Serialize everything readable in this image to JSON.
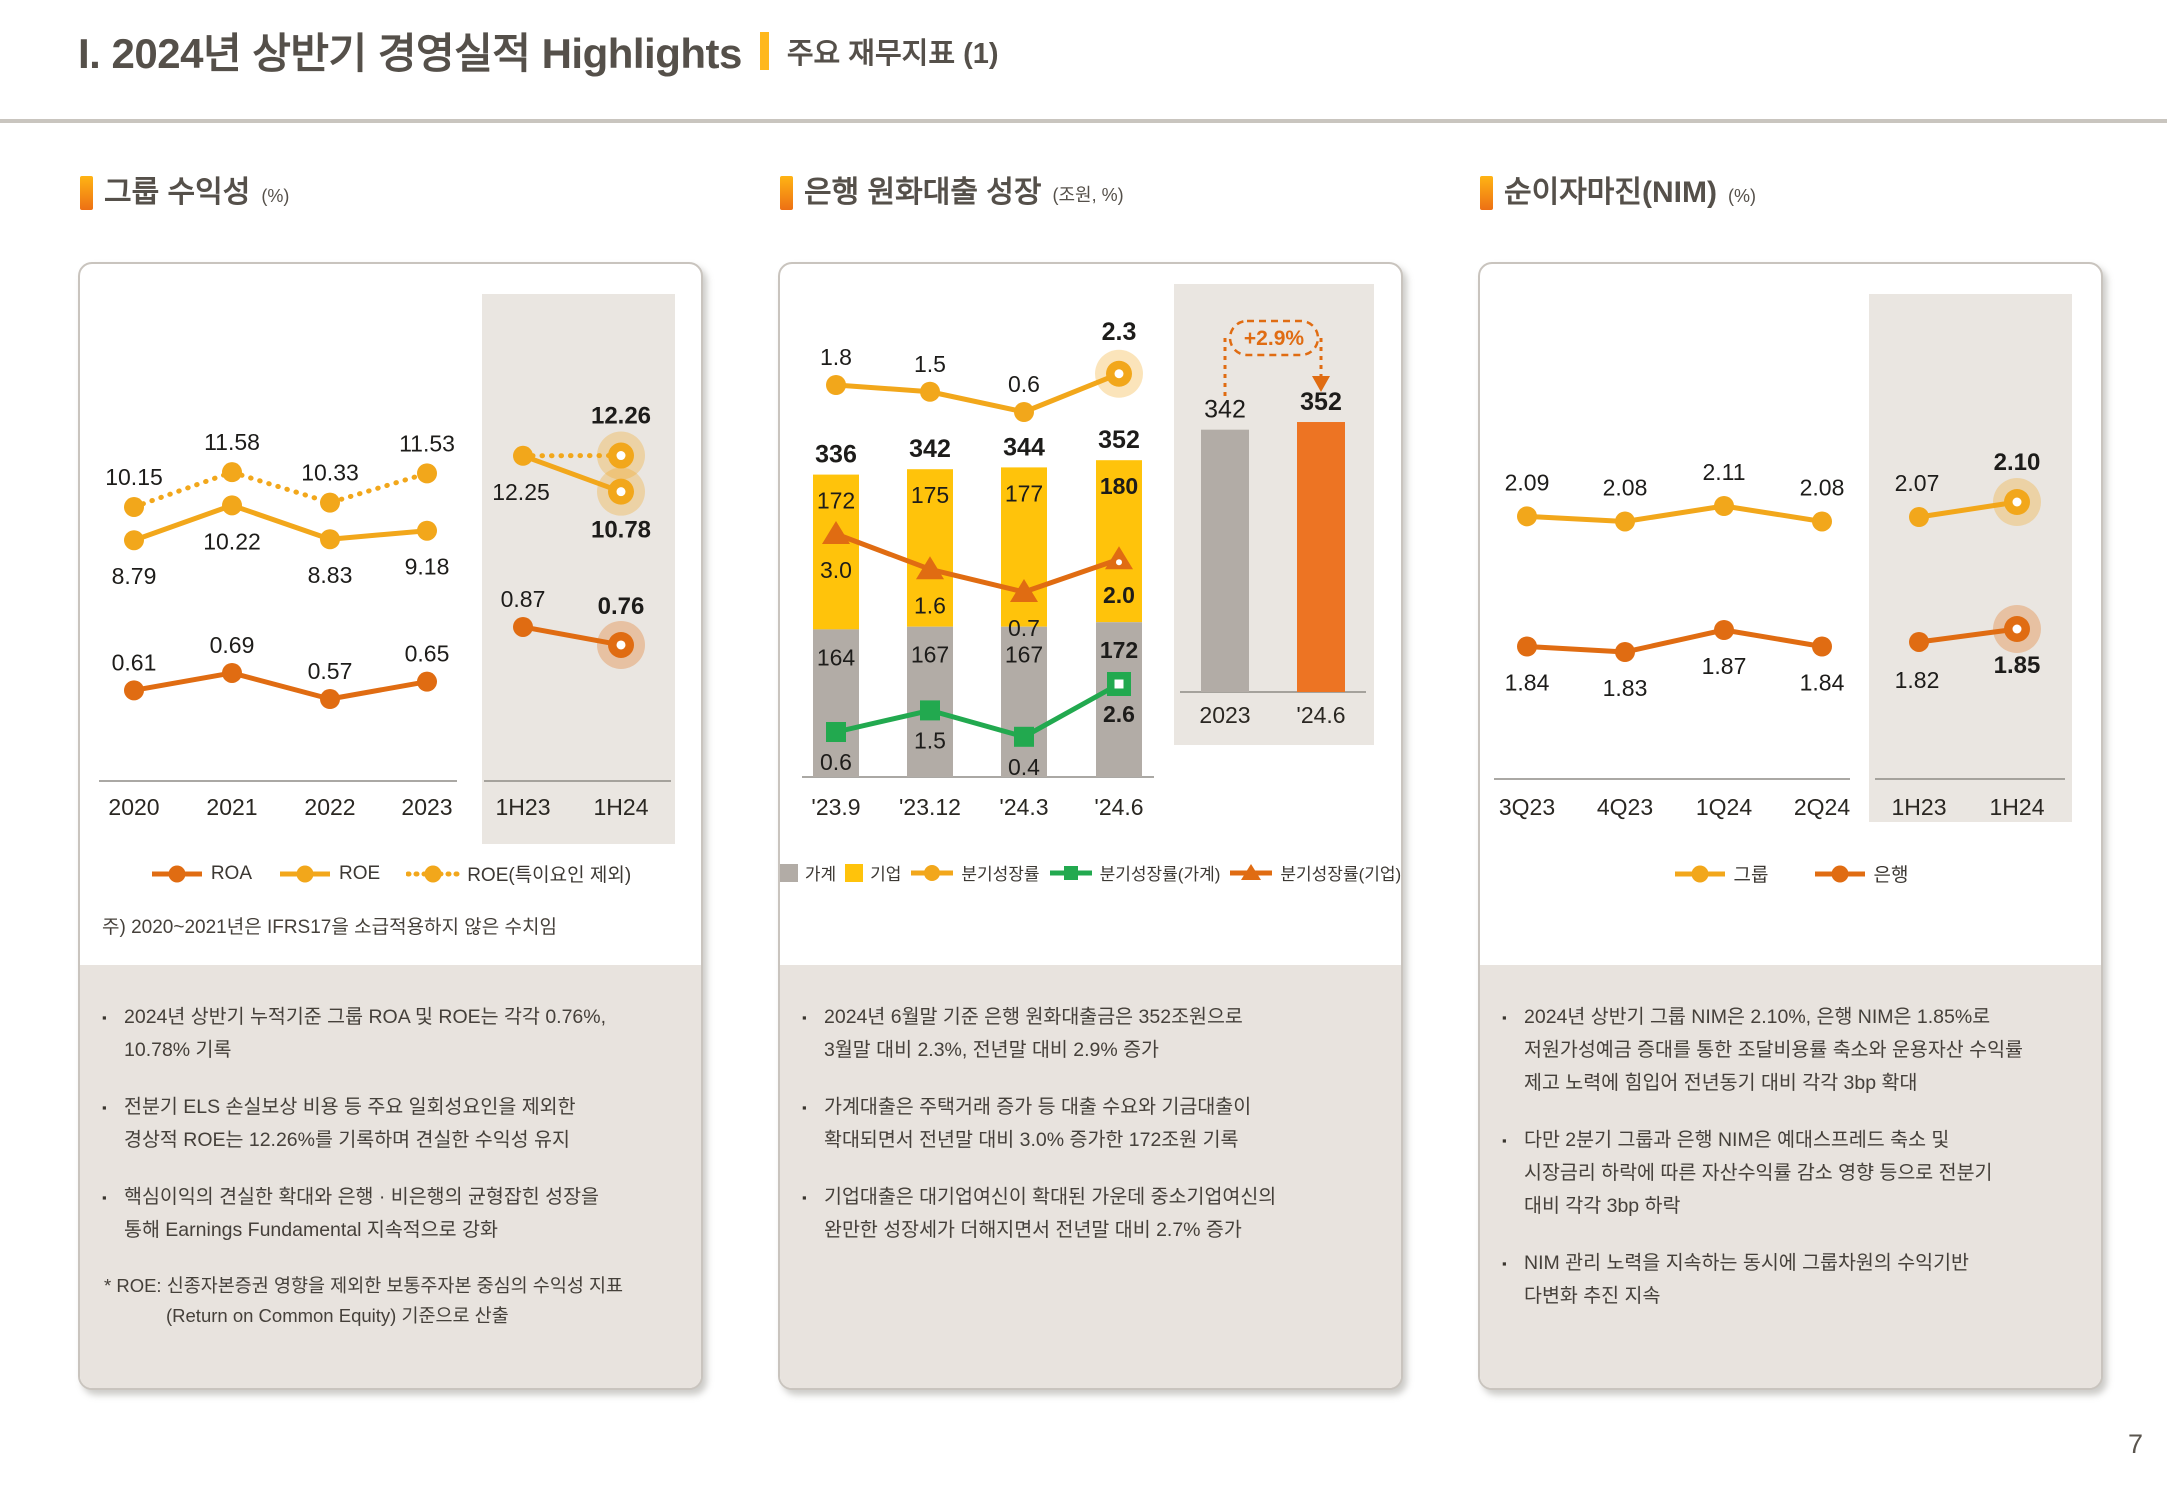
{
  "header": {
    "title": "I. 2024년 상반기 경영실적 Highlights",
    "subtitle": "주요 재무지표 (1)"
  },
  "colors": {
    "accent_yellow": "#F2A71B",
    "accent_orange": "#E06C12",
    "bar_orange": "#ED7423",
    "bar_yellow": "#FFC30B",
    "bar_gray": "#B2ACA6",
    "green": "#22A94F",
    "title_text": "#55504A",
    "panel_beige": "#E8E3DE",
    "chart_shade": "#EAE6E1"
  },
  "panels": {
    "p1": {
      "title": "그룹 수익성",
      "unit": "(%)",
      "chart_note": "주) 2020~2021년은 IFRS17을 소급적용하지 않은 수치임",
      "bullets": [
        "2024년 상반기 누적기준 그룹 ROA 및 ROE는 각각 0.76%,\n10.78% 기록",
        "전분기 ELS 손실보상 비용 등 주요 일회성요인을 제외한\n경상적 ROE는 12.26%를 기록하며 견실한 수익성 유지",
        "핵심이익의 견실한 확대와 은행 · 비은행의 균형잡힌 성장을\n통해 Earnings Fundamental 지속적으로 강화"
      ],
      "footnote_line1": "* ROE: 신종자본증권 영향을 제외한 보통주자본 중심의 수익성 지표",
      "footnote_line2": "(Return on Common Equity) 기준으로 산출"
    },
    "p2": {
      "title": "은행 원화대출 성장",
      "unit": "(조원, %)",
      "bullets": [
        "2024년 6월말 기준 은행 원화대출금은 352조원으로\n3월말 대비 2.3%, 전년말 대비 2.9% 증가",
        "가계대출은 주택거래 증가 등 대출 수요와 기금대출이\n확대되면서 전년말 대비 3.0% 증가한 172조원 기록",
        "기업대출은 대기업여신이 확대된 가운데 중소기업여신의\n완만한 성장세가 더해지면서 전년말 대비 2.7% 증가"
      ]
    },
    "p3": {
      "title": "순이자마진(NIM)",
      "unit": "(%)",
      "bullets": [
        "2024년 상반기 그룹 NIM은 2.10%, 은행 NIM은 1.85%로\n저원가성예금 증대를 통한 조달비용률 축소와 운용자산 수익률\n제고 노력에 힘입어 전년동기 대비 각각 3bp 확대",
        "다만 2분기 그룹과 은행 NIM은 예대스프레드 축소 및\n시장금리 하락에 따른 자산수익률 감소 영향 등으로 전분기\n대비 각각 3bp 하락",
        "NIM 관리 노력을 지속하는 동시에 그룹차원의 수익기반\n다변화 추진 지속"
      ]
    }
  },
  "chart_data": [
    {
      "type": "line",
      "title": "그룹 수익성",
      "ylabel": "%",
      "categories": [
        "2020",
        "2021",
        "2022",
        "2023"
      ],
      "right_categories": [
        "1H23",
        "1H24"
      ],
      "series": [
        {
          "name": "ROE(특이요인 제외)",
          "style": "dotted",
          "color": "yellow",
          "values": [
            "10.15",
            "11.58",
            "10.33",
            "11.53"
          ],
          "right_values": [
            "12.25",
            "12.26"
          ]
        },
        {
          "name": "ROE",
          "style": "solid",
          "color": "yellow",
          "values": [
            "8.79",
            "10.22",
            "8.83",
            "9.18"
          ],
          "right_values": [
            "12.25",
            "10.78"
          ]
        },
        {
          "name": "ROA",
          "style": "solid",
          "color": "orange",
          "values": [
            "0.61",
            "0.69",
            "0.57",
            "0.65"
          ],
          "right_values": [
            "0.87",
            "0.76"
          ]
        }
      ],
      "legend": [
        "ROA",
        "ROE",
        "ROE(특이요인 제외)"
      ]
    },
    {
      "type": "stacked-bar-line",
      "title": "은행 원화대출 성장",
      "ylabel": "조원, %",
      "categories": [
        "'23.9",
        "'23.12",
        "'24.3",
        "'24.6"
      ],
      "totals": [
        "336",
        "342",
        "344",
        "352"
      ],
      "stack_household": [
        "164",
        "167",
        "167",
        "172"
      ],
      "stack_corporate": [
        "172",
        "175",
        "177",
        "180"
      ],
      "line_quarterly_growth": [
        "1.8",
        "1.5",
        "0.6",
        "2.3"
      ],
      "line_household_growth": [
        "0.6",
        "1.5",
        "0.4",
        "2.6"
      ],
      "line_corporate_growth": [
        "3.0",
        "1.6",
        "0.7",
        "2.0"
      ],
      "right_categories": [
        "2023",
        "'24.6"
      ],
      "right_values": [
        "342",
        "352"
      ],
      "right_annotation": "+2.9%",
      "legend": [
        "가계",
        "기업",
        "분기성장률",
        "분기성장률(가계)",
        "분기성장률(기업)"
      ]
    },
    {
      "type": "line",
      "title": "순이자마진(NIM)",
      "ylabel": "%",
      "categories": [
        "3Q23",
        "4Q23",
        "1Q24",
        "2Q24"
      ],
      "right_categories": [
        "1H23",
        "1H24"
      ],
      "series": [
        {
          "name": "그룹",
          "style": "solid",
          "color": "yellow",
          "values": [
            "2.09",
            "2.08",
            "2.11",
            "2.08"
          ],
          "right_values": [
            "2.07",
            "2.10"
          ]
        },
        {
          "name": "은행",
          "style": "solid",
          "color": "orange",
          "values": [
            "1.84",
            "1.83",
            "1.87",
            "1.84"
          ],
          "right_values": [
            "1.82",
            "1.85"
          ]
        }
      ],
      "legend": [
        "그룹",
        "은행"
      ]
    }
  ],
  "footer": {
    "page": "7"
  }
}
